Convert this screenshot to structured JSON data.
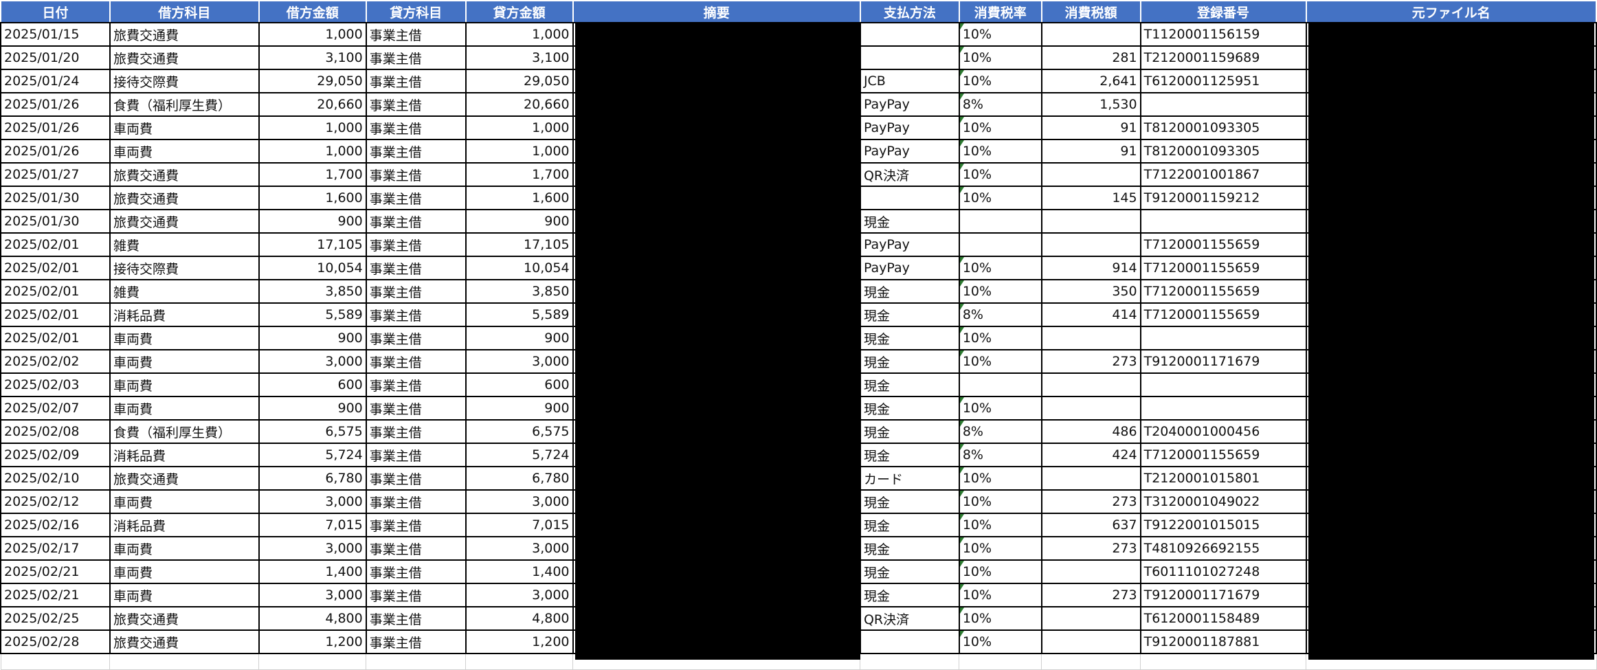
{
  "headers": [
    "日付",
    "借方科目",
    "借方金額",
    "貸方科目",
    "貸方金額",
    "摘要",
    "支払方法",
    "消費税率",
    "消費税額",
    "登録番号",
    "元ファイル名"
  ],
  "colors": {
    "header_bg": "#4472C4",
    "header_text": "#FFFFFF",
    "redaction": "#000000",
    "comment_marker": "#2E7D32"
  },
  "rows": [
    [
      "2025/01/15",
      "旅費交通費",
      "1,000",
      "事業主借",
      "1,000",
      "",
      "",
      "10%",
      "",
      "T1120001156159",
      ""
    ],
    [
      "2025/01/20",
      "旅費交通費",
      "3,100",
      "事業主借",
      "3,100",
      "",
      "",
      "10%",
      "281",
      "T2120001159689",
      ""
    ],
    [
      "2025/01/24",
      "接待交際費",
      "29,050",
      "事業主借",
      "29,050",
      "",
      "JCB",
      "10%",
      "2,641",
      "T6120001125951",
      ""
    ],
    [
      "2025/01/26",
      "食費（福利厚生費）",
      "20,660",
      "事業主借",
      "20,660",
      "",
      "PayPay",
      "8%",
      "1,530",
      "",
      ""
    ],
    [
      "2025/01/26",
      "車両費",
      "1,000",
      "事業主借",
      "1,000",
      "",
      "PayPay",
      "10%",
      "91",
      "T8120001093305",
      ""
    ],
    [
      "2025/01/26",
      "車両費",
      "1,000",
      "事業主借",
      "1,000",
      "",
      "PayPay",
      "10%",
      "91",
      "T8120001093305",
      ""
    ],
    [
      "2025/01/27",
      "旅費交通費",
      "1,700",
      "事業主借",
      "1,700",
      "",
      "QR決済",
      "10%",
      "",
      "T7122001001867",
      ""
    ],
    [
      "2025/01/30",
      "旅費交通費",
      "1,600",
      "事業主借",
      "1,600",
      "",
      "",
      "10%",
      "145",
      "T9120001159212",
      ""
    ],
    [
      "2025/01/30",
      "旅費交通費",
      "900",
      "事業主借",
      "900",
      "",
      "現金",
      "",
      "",
      "",
      ""
    ],
    [
      "2025/02/01",
      "雑費",
      "17,105",
      "事業主借",
      "17,105",
      "",
      "PayPay",
      "",
      "",
      "T7120001155659",
      ""
    ],
    [
      "2025/02/01",
      "接待交際費",
      "10,054",
      "事業主借",
      "10,054",
      "",
      "PayPay",
      "10%",
      "914",
      "T7120001155659",
      ""
    ],
    [
      "2025/02/01",
      "雑費",
      "3,850",
      "事業主借",
      "3,850",
      "",
      "現金",
      "10%",
      "350",
      "T7120001155659",
      ""
    ],
    [
      "2025/02/01",
      "消耗品費",
      "5,589",
      "事業主借",
      "5,589",
      "",
      "現金",
      "8%",
      "414",
      "T7120001155659",
      ""
    ],
    [
      "2025/02/01",
      "車両費",
      "900",
      "事業主借",
      "900",
      "",
      "現金",
      "10%",
      "",
      "",
      ""
    ],
    [
      "2025/02/02",
      "車両費",
      "3,000",
      "事業主借",
      "3,000",
      "",
      "現金",
      "10%",
      "273",
      "T9120001171679",
      ""
    ],
    [
      "2025/02/03",
      "車両費",
      "600",
      "事業主借",
      "600",
      "",
      "現金",
      "",
      "",
      "",
      ""
    ],
    [
      "2025/02/07",
      "車両費",
      "900",
      "事業主借",
      "900",
      "",
      "現金",
      "10%",
      "",
      "",
      ""
    ],
    [
      "2025/02/08",
      "食費（福利厚生費）",
      "6,575",
      "事業主借",
      "6,575",
      "",
      "現金",
      "8%",
      "486",
      "T2040001000456",
      ""
    ],
    [
      "2025/02/09",
      "消耗品費",
      "5,724",
      "事業主借",
      "5,724",
      "",
      "現金",
      "8%",
      "424",
      "T7120001155659",
      ""
    ],
    [
      "2025/02/10",
      "旅費交通費",
      "6,780",
      "事業主借",
      "6,780",
      "",
      "カード",
      "10%",
      "",
      "T2120001015801",
      ""
    ],
    [
      "2025/02/12",
      "車両費",
      "3,000",
      "事業主借",
      "3,000",
      "",
      "現金",
      "10%",
      "273",
      "T3120001049022",
      ""
    ],
    [
      "2025/02/16",
      "消耗品費",
      "7,015",
      "事業主借",
      "7,015",
      "",
      "現金",
      "10%",
      "637",
      "T9122001015015",
      ""
    ],
    [
      "2025/02/17",
      "車両費",
      "3,000",
      "事業主借",
      "3,000",
      "",
      "現金",
      "10%",
      "273",
      "T4810926692155",
      ""
    ],
    [
      "2025/02/21",
      "車両費",
      "1,400",
      "事業主借",
      "1,400",
      "",
      "現金",
      "10%",
      "",
      "T6011101027248",
      ""
    ],
    [
      "2025/02/21",
      "車両費",
      "3,000",
      "事業主借",
      "3,000",
      "",
      "現金",
      "10%",
      "273",
      "T9120001171679",
      ""
    ],
    [
      "2025/02/25",
      "旅費交通費",
      "4,800",
      "事業主借",
      "4,800",
      "",
      "QR決済",
      "10%",
      "",
      "T6120001158489",
      ""
    ],
    [
      "2025/02/28",
      "旅費交通費",
      "1,200",
      "事業主借",
      "1,200",
      "",
      "",
      "10%",
      "",
      "T9120001187881",
      ""
    ]
  ]
}
